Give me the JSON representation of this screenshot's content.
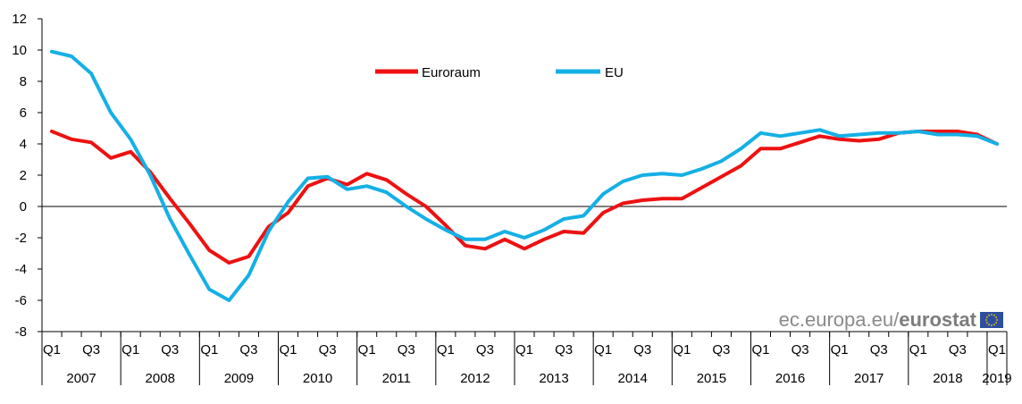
{
  "chart_data": {
    "type": "line",
    "title": "",
    "xlabel": "",
    "ylabel": "",
    "ylim": [
      -8,
      12
    ],
    "yticks": [
      "12",
      "10",
      "8",
      "6",
      "4",
      "2",
      "0",
      "-2",
      "-4",
      "-6",
      "-8"
    ],
    "grid": false,
    "legend_position": "top-center",
    "quarter_labels": [
      "Q1",
      "Q3",
      "Q1",
      "Q3",
      "Q1",
      "Q3",
      "Q1",
      "Q3",
      "Q1",
      "Q3",
      "Q1",
      "Q3",
      "Q1",
      "Q3",
      "Q1",
      "Q3",
      "Q1",
      "Q3",
      "Q1",
      "Q3",
      "Q1",
      "Q3",
      "Q1",
      "Q3",
      "Q1"
    ],
    "years": [
      "2007",
      "2008",
      "2009",
      "2010",
      "2011",
      "2012",
      "2013",
      "2014",
      "2015",
      "2016",
      "2017",
      "2018",
      "2019"
    ],
    "series": [
      {
        "name": "Euroraum",
        "color": "#ee1111",
        "values": [
          4.8,
          4.3,
          4.1,
          3.1,
          3.5,
          2.2,
          0.5,
          -1.1,
          -2.8,
          -3.6,
          -3.2,
          -1.3,
          -0.4,
          1.3,
          1.8,
          1.4,
          2.1,
          1.7,
          0.8,
          0.0,
          -1.2,
          -2.5,
          -2.7,
          -2.1,
          -2.7,
          -2.1,
          -1.6,
          -1.7,
          -0.4,
          0.2,
          0.4,
          0.5,
          0.5,
          1.2,
          1.9,
          2.6,
          3.7,
          3.7,
          4.1,
          4.5,
          4.3,
          4.2,
          4.3,
          4.7,
          4.8,
          4.8,
          4.8,
          4.6,
          4.0
        ]
      },
      {
        "name": "EU",
        "color": "#14b0e6",
        "values": [
          9.9,
          9.6,
          8.5,
          6.0,
          4.3,
          2.0,
          -0.8,
          -3.1,
          -5.3,
          -6.0,
          -4.4,
          -1.6,
          0.3,
          1.8,
          1.9,
          1.1,
          1.3,
          0.9,
          0.0,
          -0.8,
          -1.5,
          -2.1,
          -2.1,
          -1.6,
          -2.0,
          -1.5,
          -0.8,
          -0.6,
          0.8,
          1.6,
          2.0,
          2.1,
          2.0,
          2.4,
          2.9,
          3.7,
          4.7,
          4.5,
          4.7,
          4.9,
          4.5,
          4.6,
          4.7,
          4.7,
          4.8,
          4.6,
          4.6,
          4.5,
          4.0
        ]
      }
    ]
  },
  "watermark": {
    "site": "ec.europa.eu/",
    "brand": "eurostat"
  }
}
